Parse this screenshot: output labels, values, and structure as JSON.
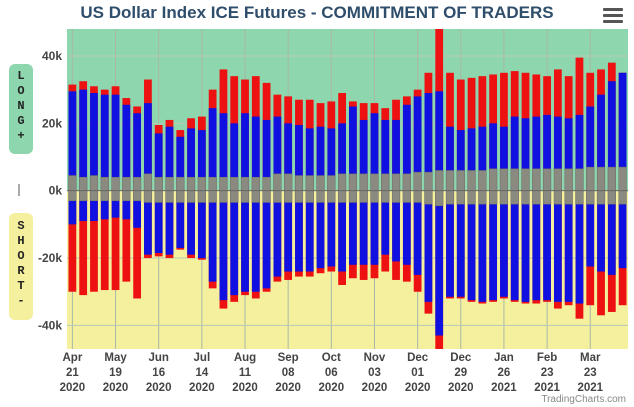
{
  "title": "US Dollar Index ICE Futures - COMMITMENT OF TRADERS",
  "long_label": [
    "L",
    "O",
    "N",
    "G",
    "+"
  ],
  "short_label": [
    "S",
    "H",
    "O",
    "R",
    "T",
    "-"
  ],
  "credit": "TradingCharts.com",
  "icons": {
    "menu": "hamburger-menu-icon"
  },
  "colors": {
    "long_bg": "#8ed6ae",
    "short_bg": "#f5f09e",
    "blue": "#1010e0",
    "red": "#ee1111",
    "gray": "#8a8a80",
    "title": "#2f4e6b"
  },
  "chart_data": {
    "type": "bar",
    "title": "US Dollar Index ICE Futures - COMMITMENT OF TRADERS",
    "ylim": [
      -47000,
      48000
    ],
    "y_ticks": [
      40000,
      20000,
      0,
      -20000,
      -40000
    ],
    "y_tick_labels": [
      "40k",
      "20k",
      "0k",
      "-20k",
      "-40k"
    ],
    "x_tick_labels": [
      [
        "Apr",
        "21",
        "2020"
      ],
      [
        "May",
        "19",
        "2020"
      ],
      [
        "Jun",
        "16",
        "2020"
      ],
      [
        "Jul",
        "14",
        "2020"
      ],
      [
        "Aug",
        "11",
        "2020"
      ],
      [
        "Sep",
        "08",
        "2020"
      ],
      [
        "Oct",
        "06",
        "2020"
      ],
      [
        "Nov",
        "03",
        "2020"
      ],
      [
        "Dec",
        "01",
        "2020"
      ],
      [
        "Dec",
        "29",
        "2020"
      ],
      [
        "Jan",
        "26",
        "2021"
      ],
      [
        "Feb",
        "23",
        "2021"
      ],
      [
        "Mar",
        "23",
        "2021"
      ]
    ],
    "x_tick_week_index": [
      0,
      4,
      8,
      12,
      16,
      20,
      24,
      28,
      32,
      36,
      40,
      44,
      48
    ],
    "weeks": 52,
    "series": [
      {
        "name": "Long (blue)",
        "values": [
          29500,
          30000,
          29000,
          28500,
          28500,
          25500,
          23000,
          26000,
          17000,
          19000,
          16000,
          18500,
          18000,
          24500,
          23000,
          20000,
          23000,
          22000,
          21000,
          22000,
          20000,
          19500,
          18500,
          19000,
          18500,
          20000,
          25000,
          21000,
          23000,
          21000,
          21000,
          25500,
          28000,
          29000,
          29500,
          19000,
          18000,
          18500,
          19000,
          20000,
          19000,
          22000,
          21500,
          22000,
          22500,
          22000,
          21500,
          22500,
          25000,
          28500,
          32500,
          35000
        ]
      },
      {
        "name": "Long spread (red)",
        "values": [
          31500,
          32500,
          31000,
          30000,
          31000,
          27500,
          25000,
          33000,
          19500,
          21000,
          18000,
          21500,
          22000,
          30000,
          36000,
          34000,
          33000,
          34000,
          32000,
          28500,
          28000,
          27000,
          27000,
          26000,
          26500,
          29000,
          26500,
          26000,
          26000,
          24500,
          27000,
          28000,
          30000,
          35000,
          48000,
          35000,
          33000,
          33500,
          34000,
          34500,
          35000,
          35500,
          35000,
          34500,
          34000,
          36000,
          34000,
          39500,
          35000,
          36000,
          38000,
          35000
        ]
      },
      {
        "name": "Long other (gray)",
        "values": [
          4500,
          4000,
          4500,
          4000,
          4000,
          4000,
          4000,
          5000,
          4000,
          4000,
          4000,
          4000,
          4000,
          4000,
          4000,
          4000,
          4000,
          4000,
          4000,
          5000,
          5000,
          4500,
          4500,
          4500,
          4500,
          5000,
          5000,
          5000,
          5000,
          5000,
          5000,
          5000,
          5500,
          5500,
          6000,
          6000,
          6000,
          6000,
          6000,
          6500,
          6500,
          6500,
          6500,
          6500,
          6500,
          6500,
          6500,
          6500,
          7000,
          7000,
          7000,
          7000
        ]
      },
      {
        "name": "Short (blue)",
        "values": [
          -10000,
          -9000,
          -9000,
          -8500,
          -8000,
          -8500,
          -11000,
          -19000,
          -18500,
          -19000,
          -17000,
          -19000,
          -20000,
          -27000,
          -32500,
          -31000,
          -30000,
          -30000,
          -29000,
          -25500,
          -24000,
          -24000,
          -24000,
          -23000,
          -22500,
          -24000,
          -22000,
          -22000,
          -22000,
          -19000,
          -21000,
          -22000,
          -25000,
          -33000,
          -43000,
          -31500,
          -31500,
          -32500,
          -33000,
          -32500,
          -31500,
          -32500,
          -33000,
          -32500,
          -32500,
          -33000,
          -33000,
          -33500,
          -22500,
          -24000,
          -25000,
          -23000
        ]
      },
      {
        "name": "Short spread (red)",
        "values": [
          -30000,
          -31000,
          -30000,
          -29500,
          -29500,
          -27000,
          -32000,
          -20000,
          -19500,
          -20000,
          -17500,
          -20000,
          -20500,
          -29000,
          -35000,
          -33000,
          -31000,
          -32000,
          -30000,
          -27000,
          -26500,
          -25500,
          -25500,
          -24500,
          -24000,
          -28000,
          -26000,
          -26500,
          -26000,
          -24000,
          -26500,
          -27000,
          -30000,
          -36500,
          -47000,
          -32000,
          -32000,
          -33000,
          -33500,
          -33000,
          -32000,
          -33000,
          -33500,
          -33500,
          -33000,
          -35000,
          -34000,
          -38000,
          -34000,
          -37000,
          -36000,
          -34000
        ]
      },
      {
        "name": "Short other (gray)",
        "values": [
          -3000,
          -3000,
          -3000,
          -3000,
          -3000,
          -3000,
          -3000,
          -3500,
          -3500,
          -3500,
          -3500,
          -3500,
          -3500,
          -3500,
          -3500,
          -3500,
          -3500,
          -3500,
          -3500,
          -3500,
          -3500,
          -3500,
          -3500,
          -3500,
          -3500,
          -3500,
          -3500,
          -3500,
          -3500,
          -3500,
          -3500,
          -3500,
          -3500,
          -4000,
          -4500,
          -4000,
          -4000,
          -4000,
          -4000,
          -4000,
          -4000,
          -4000,
          -4000,
          -4000,
          -4000,
          -4000,
          -4000,
          -4000,
          -4000,
          -4000,
          -4000,
          -4000
        ]
      }
    ],
    "grid": true
  }
}
